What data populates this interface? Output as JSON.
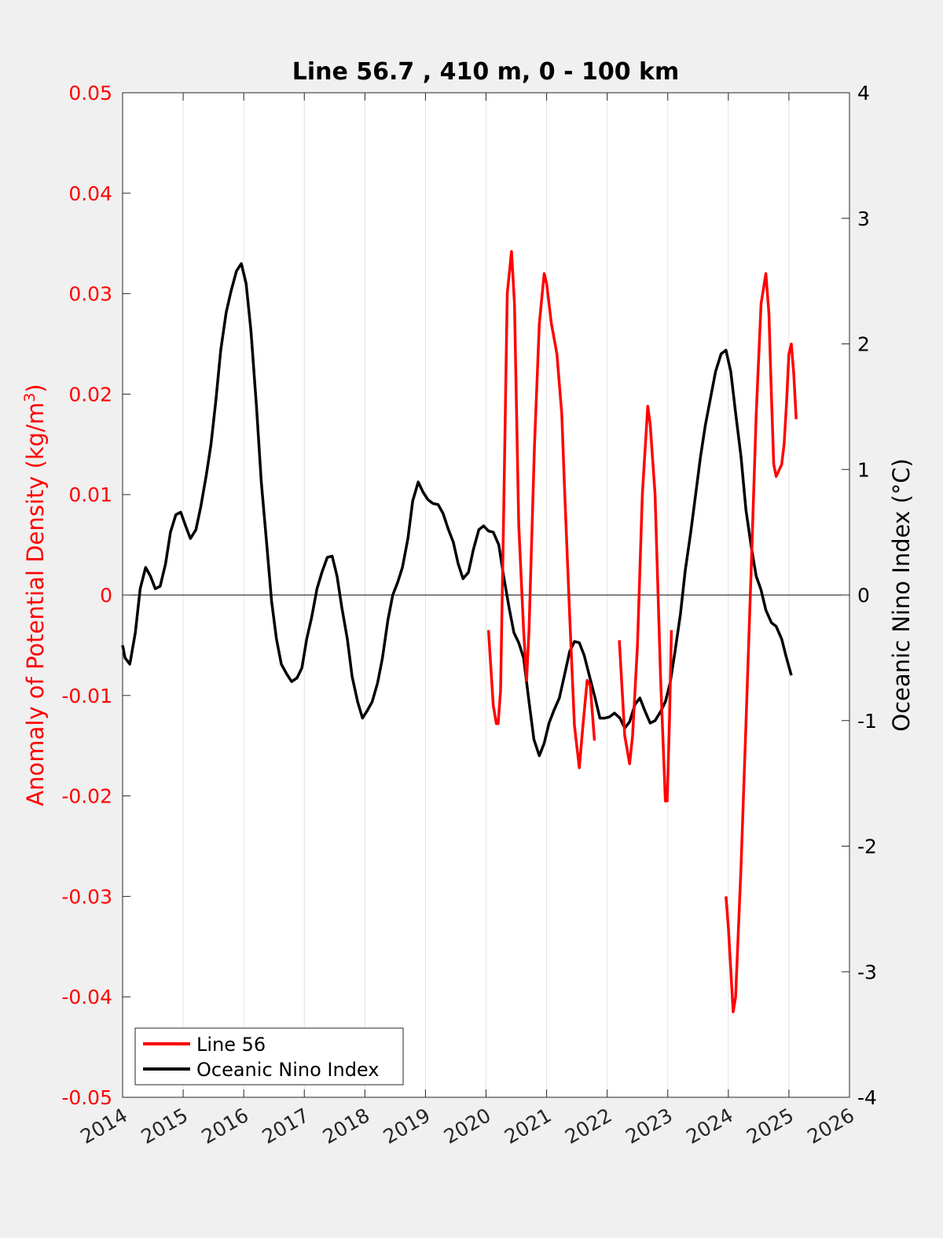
{
  "chart_data": {
    "type": "line",
    "title": "Line 56.7 , 410 m, 0 - 100 km",
    "xlabel": "",
    "ylabel_left": "Anomaly of Potential Density (kg/m",
    "ylabel_left_sup": "3",
    "ylabel_left_close": ")",
    "ylabel_right": "Oceanic Nino Index (°C)",
    "xlim": [
      2014,
      2026
    ],
    "ylim_left": [
      -0.05,
      0.05
    ],
    "ylim_right": [
      -4,
      4
    ],
    "x_ticks": [
      "2014",
      "2015",
      "2016",
      "2017",
      "2018",
      "2019",
      "2020",
      "2021",
      "2022",
      "2023",
      "2024",
      "2025",
      "2026"
    ],
    "y_left_ticks": [
      "-0.05",
      "-0.04",
      "-0.03",
      "-0.02",
      "-0.01",
      "0",
      "0.01",
      "0.02",
      "0.03",
      "0.04",
      "0.05"
    ],
    "y_right_ticks": [
      "-4",
      "-3",
      "-2",
      "-1",
      "0",
      "1",
      "2",
      "3",
      "4"
    ],
    "grid": "vertical",
    "legend_position": "bottom-left",
    "colors": {
      "line56": "#ff0000",
      "oni": "#000000",
      "left_axis": "#ff0000",
      "right_axis": "#000000",
      "background": "#f0f0f0",
      "plot_bg": "#ffffff"
    },
    "series": [
      {
        "name": "Line 56",
        "axis": "left",
        "segments": [
          [
            [
              2020.04,
              -0.0035
            ],
            [
              2020.12,
              -0.011
            ],
            [
              2020.17,
              -0.0128
            ],
            [
              2020.2,
              -0.0128
            ],
            [
              2020.24,
              -0.0095
            ],
            [
              2020.29,
              0.008
            ],
            [
              2020.35,
              0.03
            ],
            [
              2020.42,
              0.0342
            ],
            [
              2020.47,
              0.029
            ],
            [
              2020.54,
              0.007
            ],
            [
              2020.62,
              -0.0035
            ],
            [
              2020.67,
              -0.0085
            ],
            [
              2020.71,
              -0.0035
            ],
            [
              2020.8,
              0.015
            ],
            [
              2020.88,
              0.027
            ],
            [
              2020.96,
              0.032
            ],
            [
              2021.0,
              0.031
            ],
            [
              2021.08,
              0.027
            ],
            [
              2021.17,
              0.024
            ],
            [
              2021.25,
              0.018
            ],
            [
              2021.3,
              0.01
            ],
            [
              2021.38,
              -0.002
            ],
            [
              2021.46,
              -0.013
            ],
            [
              2021.54,
              -0.0172
            ],
            [
              2021.6,
              -0.013
            ],
            [
              2021.67,
              -0.0085
            ],
            [
              2021.72,
              -0.009
            ],
            [
              2021.79,
              -0.0145
            ]
          ],
          [
            [
              2022.2,
              -0.0045
            ],
            [
              2022.29,
              -0.014
            ],
            [
              2022.37,
              -0.0168
            ],
            [
              2022.42,
              -0.014
            ],
            [
              2022.5,
              -0.005
            ],
            [
              2022.58,
              0.01
            ],
            [
              2022.67,
              0.0188
            ],
            [
              2022.71,
              0.017
            ],
            [
              2022.79,
              0.01
            ],
            [
              2022.88,
              -0.008
            ],
            [
              2022.96,
              -0.0205
            ],
            [
              2022.99,
              -0.0205
            ],
            [
              2023.03,
              -0.012
            ],
            [
              2023.06,
              -0.0035
            ]
          ],
          [
            [
              2023.96,
              -0.03
            ],
            [
              2024.0,
              -0.033
            ],
            [
              2024.08,
              -0.0415
            ],
            [
              2024.12,
              -0.04
            ],
            [
              2024.21,
              -0.027
            ],
            [
              2024.29,
              -0.013
            ],
            [
              2024.38,
              0.003
            ],
            [
              2024.46,
              0.018
            ],
            [
              2024.54,
              0.029
            ],
            [
              2024.62,
              0.032
            ],
            [
              2024.67,
              0.028
            ],
            [
              2024.71,
              0.02
            ],
            [
              2024.75,
              0.013
            ],
            [
              2024.79,
              0.0118
            ],
            [
              2024.88,
              0.013
            ],
            [
              2024.92,
              0.015
            ],
            [
              2024.96,
              0.019
            ],
            [
              2025.0,
              0.024
            ],
            [
              2025.04,
              0.025
            ],
            [
              2025.08,
              0.022
            ],
            [
              2025.12,
              0.0175
            ]
          ]
        ]
      },
      {
        "name": "Oceanic Nino Index",
        "axis": "right",
        "points": [
          [
            2014.0,
            -0.4
          ],
          [
            2014.04,
            -0.5
          ],
          [
            2014.12,
            -0.55
          ],
          [
            2014.21,
            -0.3
          ],
          [
            2014.29,
            0.05
          ],
          [
            2014.38,
            0.22
          ],
          [
            2014.46,
            0.15
          ],
          [
            2014.54,
            0.05
          ],
          [
            2014.62,
            0.07
          ],
          [
            2014.71,
            0.25
          ],
          [
            2014.79,
            0.5
          ],
          [
            2014.88,
            0.64
          ],
          [
            2014.96,
            0.66
          ],
          [
            2015.04,
            0.55
          ],
          [
            2015.12,
            0.45
          ],
          [
            2015.21,
            0.52
          ],
          [
            2015.29,
            0.7
          ],
          [
            2015.38,
            0.95
          ],
          [
            2015.46,
            1.2
          ],
          [
            2015.54,
            1.55
          ],
          [
            2015.62,
            1.95
          ],
          [
            2015.71,
            2.25
          ],
          [
            2015.79,
            2.42
          ],
          [
            2015.88,
            2.58
          ],
          [
            2015.96,
            2.64
          ],
          [
            2016.04,
            2.48
          ],
          [
            2016.12,
            2.1
          ],
          [
            2016.21,
            1.5
          ],
          [
            2016.29,
            0.9
          ],
          [
            2016.38,
            0.4
          ],
          [
            2016.46,
            -0.05
          ],
          [
            2016.54,
            -0.35
          ],
          [
            2016.62,
            -0.55
          ],
          [
            2016.71,
            -0.63
          ],
          [
            2016.79,
            -0.69
          ],
          [
            2016.88,
            -0.66
          ],
          [
            2016.96,
            -0.58
          ],
          [
            2017.04,
            -0.35
          ],
          [
            2017.12,
            -0.18
          ],
          [
            2017.21,
            0.05
          ],
          [
            2017.29,
            0.18
          ],
          [
            2017.38,
            0.3
          ],
          [
            2017.46,
            0.31
          ],
          [
            2017.54,
            0.15
          ],
          [
            2017.62,
            -0.1
          ],
          [
            2017.71,
            -0.35
          ],
          [
            2017.79,
            -0.65
          ],
          [
            2017.88,
            -0.85
          ],
          [
            2017.96,
            -0.98
          ],
          [
            2018.04,
            -0.92
          ],
          [
            2018.12,
            -0.85
          ],
          [
            2018.21,
            -0.7
          ],
          [
            2018.29,
            -0.5
          ],
          [
            2018.38,
            -0.2
          ],
          [
            2018.46,
            0.0
          ],
          [
            2018.54,
            0.1
          ],
          [
            2018.62,
            0.22
          ],
          [
            2018.71,
            0.45
          ],
          [
            2018.79,
            0.75
          ],
          [
            2018.88,
            0.9
          ],
          [
            2018.96,
            0.82
          ],
          [
            2019.04,
            0.76
          ],
          [
            2019.12,
            0.73
          ],
          [
            2019.21,
            0.72
          ],
          [
            2019.29,
            0.65
          ],
          [
            2019.38,
            0.52
          ],
          [
            2019.46,
            0.42
          ],
          [
            2019.54,
            0.25
          ],
          [
            2019.62,
            0.13
          ],
          [
            2019.71,
            0.18
          ],
          [
            2019.79,
            0.36
          ],
          [
            2019.88,
            0.52
          ],
          [
            2019.96,
            0.55
          ],
          [
            2020.04,
            0.51
          ],
          [
            2020.12,
            0.5
          ],
          [
            2020.21,
            0.4
          ],
          [
            2020.29,
            0.15
          ],
          [
            2020.38,
            -0.1
          ],
          [
            2020.46,
            -0.3
          ],
          [
            2020.54,
            -0.38
          ],
          [
            2020.62,
            -0.5
          ],
          [
            2020.71,
            -0.85
          ],
          [
            2020.79,
            -1.15
          ],
          [
            2020.88,
            -1.28
          ],
          [
            2020.96,
            -1.18
          ],
          [
            2021.04,
            -1.02
          ],
          [
            2021.12,
            -0.92
          ],
          [
            2021.21,
            -0.82
          ],
          [
            2021.29,
            -0.65
          ],
          [
            2021.38,
            -0.45
          ],
          [
            2021.46,
            -0.37
          ],
          [
            2021.54,
            -0.38
          ],
          [
            2021.62,
            -0.48
          ],
          [
            2021.71,
            -0.65
          ],
          [
            2021.79,
            -0.8
          ],
          [
            2021.88,
            -0.98
          ],
          [
            2021.96,
            -0.98
          ],
          [
            2022.04,
            -0.97
          ],
          [
            2022.12,
            -0.94
          ],
          [
            2022.21,
            -0.98
          ],
          [
            2022.29,
            -1.06
          ],
          [
            2022.37,
            -1.01
          ],
          [
            2022.46,
            -0.87
          ],
          [
            2022.54,
            -0.82
          ],
          [
            2022.62,
            -0.92
          ],
          [
            2022.71,
            -1.02
          ],
          [
            2022.79,
            -1.0
          ],
          [
            2022.88,
            -0.93
          ],
          [
            2022.96,
            -0.85
          ],
          [
            2023.04,
            -0.7
          ],
          [
            2023.12,
            -0.45
          ],
          [
            2023.21,
            -0.15
          ],
          [
            2023.29,
            0.2
          ],
          [
            2023.38,
            0.5
          ],
          [
            2023.46,
            0.8
          ],
          [
            2023.54,
            1.1
          ],
          [
            2023.62,
            1.35
          ],
          [
            2023.71,
            1.58
          ],
          [
            2023.79,
            1.78
          ],
          [
            2023.88,
            1.92
          ],
          [
            2023.96,
            1.95
          ],
          [
            2024.04,
            1.78
          ],
          [
            2024.12,
            1.45
          ],
          [
            2024.21,
            1.1
          ],
          [
            2024.29,
            0.68
          ],
          [
            2024.38,
            0.38
          ],
          [
            2024.46,
            0.15
          ],
          [
            2024.54,
            0.04
          ],
          [
            2024.62,
            -0.12
          ],
          [
            2024.71,
            -0.22
          ],
          [
            2024.79,
            -0.25
          ],
          [
            2024.88,
            -0.35
          ],
          [
            2024.96,
            -0.5
          ],
          [
            2025.04,
            -0.64
          ]
        ]
      }
    ]
  }
}
